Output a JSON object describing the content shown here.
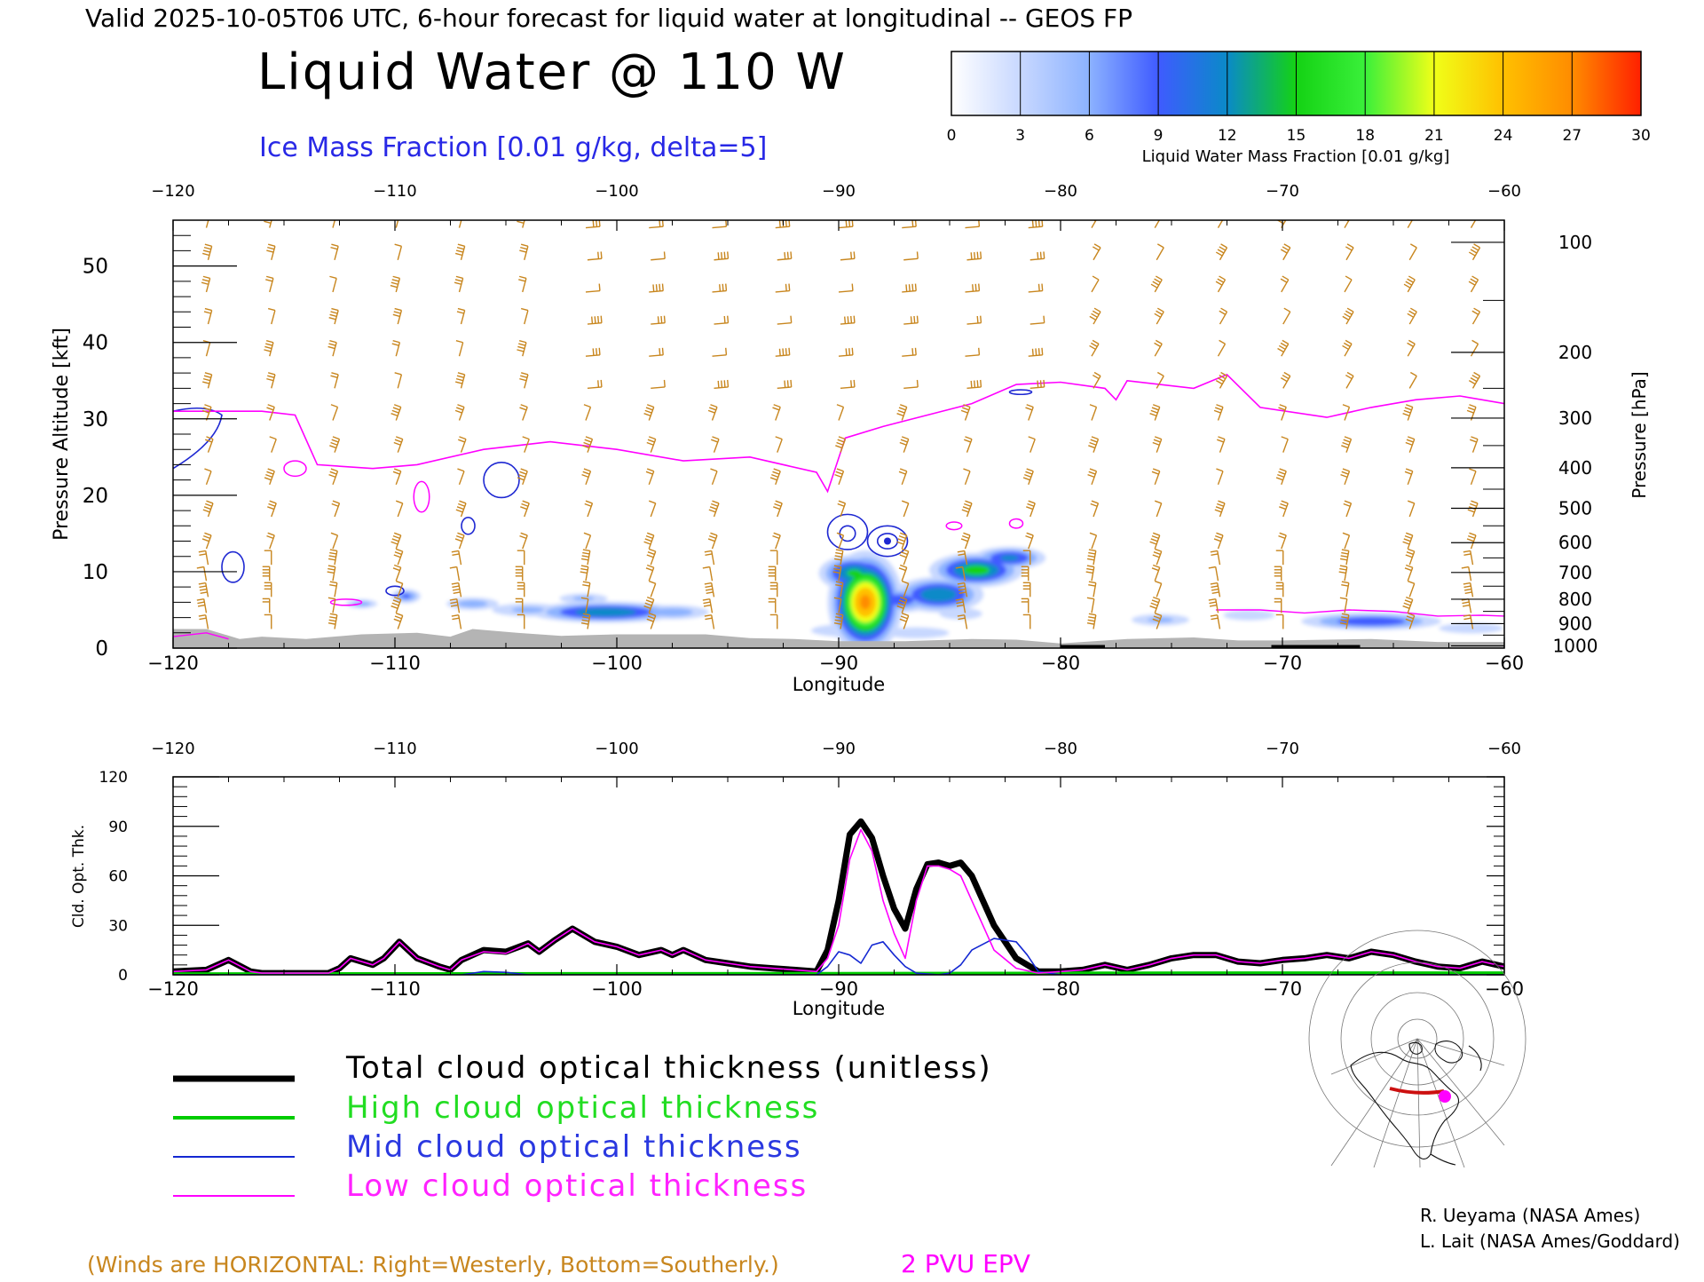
{
  "header": {
    "valid_line": "Valid 2025-10-05T06 UTC, 6-hour forecast for liquid water at longitudinal -- GEOS FP",
    "main_title": "Liquid Water @ 110 W",
    "ice_label": "Ice Mass Fraction [0.01 g/kg, delta=5]"
  },
  "colorbar": {
    "ticks": [
      "0",
      "3",
      "6",
      "9",
      "12",
      "15",
      "18",
      "21",
      "24",
      "27",
      "30"
    ],
    "label": "Liquid Water Mass Fraction [0.01 g/kg]",
    "colors": [
      "#ffffff",
      "#c8d8ff",
      "#8cb2ff",
      "#3f5bff",
      "#0a8ac8",
      "#14d214",
      "#3af03a",
      "#f0ff18",
      "#ffc000",
      "#ff8c00",
      "#ff2000"
    ]
  },
  "colors": {
    "wind": "#c8861e",
    "epv": "#ff00ff",
    "ice": "#1e28d2",
    "terrain": "#b4b4b4",
    "total": "#000000",
    "high": "#00cc00",
    "mid": "#1428d2",
    "low": "#ff00ff"
  },
  "chart_data": [
    {
      "type": "heatmap",
      "xlabel": "Longitude",
      "ylabel": "Pressure Altitude [kft]",
      "y2label": "Pressure [hPa]",
      "xlim": [
        -120,
        -60
      ],
      "ylim": [
        0,
        56
      ],
      "xticks": [
        -120,
        -110,
        -100,
        -90,
        -80,
        -70,
        -60
      ],
      "xticklabels": [
        "−120",
        "−110",
        "−100",
        "−90",
        "−80",
        "−70",
        "−60"
      ],
      "yticks": [
        0,
        10,
        20,
        30,
        40,
        50
      ],
      "yticklabels": [
        "0",
        "10",
        "20",
        "30",
        "40",
        "50"
      ],
      "pressure_ticks": [
        {
          "label": "100",
          "kft": 53.1
        },
        {
          "label": "200",
          "kft": 38.7
        },
        {
          "label": "300",
          "kft": 30.1
        },
        {
          "label": "400",
          "kft": 23.6
        },
        {
          "label": "500",
          "kft": 18.3
        },
        {
          "label": "600",
          "kft": 13.8
        },
        {
          "label": "700",
          "kft": 9.9
        },
        {
          "label": "800",
          "kft": 6.4
        },
        {
          "label": "900",
          "kft": 3.2
        },
        {
          "label": "1000",
          "kft": 0.3
        }
      ],
      "epv_2pvu": {
        "lon": [
          -120,
          -116,
          -114.5,
          -113.5,
          -111,
          -109,
          -106,
          -103,
          -100,
          -97,
          -94,
          -91,
          -90.5,
          -89.7,
          -88,
          -86,
          -84,
          -82,
          -80,
          -78,
          -77.5,
          -77,
          -74,
          -72.5,
          -71,
          -68,
          -66,
          -64,
          -62,
          -60
        ],
        "kft": [
          31,
          31,
          30.5,
          24,
          23.5,
          24,
          26,
          27,
          26,
          24.5,
          25,
          23,
          20.5,
          27.5,
          29,
          30.5,
          32,
          34.5,
          34.8,
          34,
          32.5,
          35,
          34,
          35.8,
          31.5,
          30.2,
          31.5,
          32.5,
          33,
          32
        ]
      },
      "lwc_blobs": [
        {
          "lon": -88.8,
          "kft": 6.0,
          "sx": 0.9,
          "sy": 3.6,
          "peak": 30
        },
        {
          "lon": -89.3,
          "kft": 9.8,
          "sx": 1.0,
          "sy": 1.5,
          "peak": 18
        },
        {
          "lon": -83.8,
          "kft": 10.2,
          "sx": 1.3,
          "sy": 1.4,
          "peak": 19
        },
        {
          "lon": -85.5,
          "kft": 7.0,
          "sx": 1.3,
          "sy": 1.5,
          "peak": 17
        },
        {
          "lon": -87.3,
          "kft": 6.3,
          "sx": 1.2,
          "sy": 1.2,
          "peak": 13
        },
        {
          "lon": -82.3,
          "kft": 11.8,
          "sx": 1.1,
          "sy": 1.0,
          "peak": 15
        },
        {
          "lon": -89.5,
          "kft": 2.3,
          "sx": 1.8,
          "sy": 0.9,
          "peak": 8
        },
        {
          "lon": -86.5,
          "kft": 2.0,
          "sx": 1.8,
          "sy": 0.9,
          "peak": 7
        },
        {
          "lon": -100.5,
          "kft": 4.7,
          "sx": 2.2,
          "sy": 0.9,
          "peak": 17
        },
        {
          "lon": -97.5,
          "kft": 4.7,
          "sx": 1.4,
          "sy": 0.8,
          "peak": 10
        },
        {
          "lon": -104,
          "kft": 5.0,
          "sx": 1.5,
          "sy": 0.8,
          "peak": 9
        },
        {
          "lon": -106.5,
          "kft": 5.8,
          "sx": 1.0,
          "sy": 0.7,
          "peak": 10
        },
        {
          "lon": -101.5,
          "kft": 6.5,
          "sx": 1.0,
          "sy": 0.6,
          "peak": 9
        },
        {
          "lon": -109.5,
          "kft": 6.8,
          "sx": 0.5,
          "sy": 0.7,
          "peak": 12
        },
        {
          "lon": -111.5,
          "kft": 5.8,
          "sx": 0.6,
          "sy": 0.5,
          "peak": 10
        },
        {
          "lon": -75.5,
          "kft": 3.7,
          "sx": 1.2,
          "sy": 0.7,
          "peak": 9
        },
        {
          "lon": -71.5,
          "kft": 4.3,
          "sx": 1.2,
          "sy": 0.7,
          "peak": 8
        },
        {
          "lon": -66,
          "kft": 3.5,
          "sx": 2.2,
          "sy": 0.8,
          "peak": 14
        },
        {
          "lon": -61.5,
          "kft": 2.6,
          "sx": 1.5,
          "sy": 0.7,
          "peak": 8
        },
        {
          "lon": -82.5,
          "kft": 2.5,
          "sx": 1.2,
          "sy": 0.8,
          "peak": 5
        },
        {
          "lon": -77.8,
          "kft": 23.8,
          "sx": 0.5,
          "sy": 1.5,
          "peak": 3
        },
        {
          "lon": -84.5,
          "kft": 4.5,
          "sx": 1.0,
          "sy": 0.8,
          "peak": 8
        }
      ],
      "ice_contours": [
        {
          "lon": -89.6,
          "kft": 15.2,
          "rx": 0.9,
          "ry": 2.3
        },
        {
          "lon": -89.6,
          "kft": 15.0,
          "rx": 0.35,
          "ry": 1.0
        },
        {
          "lon": -87.8,
          "kft": 14.0,
          "rx": 0.9,
          "ry": 2.0
        },
        {
          "lon": -87.8,
          "kft": 14.0,
          "rx": 0.45,
          "ry": 1.0
        },
        {
          "lon": -105.2,
          "kft": 22.0,
          "rx": 0.8,
          "ry": 2.3
        },
        {
          "lon": -117.3,
          "kft": 10.6,
          "rx": 0.5,
          "ry": 2.0
        },
        {
          "lon": -106.7,
          "kft": 16.0,
          "rx": 0.3,
          "ry": 1.1
        },
        {
          "lon": -110,
          "kft": 7.5,
          "rx": 0.4,
          "ry": 0.6
        },
        {
          "lon": -81.8,
          "kft": 33.5,
          "rx": 0.5,
          "ry": 0.3
        }
      ],
      "epv_blobs": [
        {
          "lon": -114.5,
          "kft": 23.5,
          "rx": 0.5,
          "ry": 1.0
        },
        {
          "lon": -108.8,
          "kft": 19.8,
          "rx": 0.35,
          "ry": 2.0
        },
        {
          "lon": -84.8,
          "kft": 16.0,
          "rx": 0.35,
          "ry": 0.5
        },
        {
          "lon": -82,
          "kft": 16.3,
          "rx": 0.3,
          "ry": 0.6
        },
        {
          "lon": -112.2,
          "kft": 6.0,
          "rx": 0.7,
          "ry": 0.4
        }
      ],
      "low_epv": {
        "lon": [
          -73,
          -71,
          -69,
          -67,
          -65,
          -63,
          -61,
          -60
        ],
        "kft": [
          5,
          5,
          4.6,
          5,
          4.8,
          4.2,
          4.3,
          4.2
        ]
      },
      "terrain": {
        "lon": [
          -120,
          -118.5,
          -117,
          -116,
          -114,
          -111.5,
          -109,
          -107.5,
          -106.5,
          -104.5,
          -102.5,
          -100,
          -96,
          -94,
          -92,
          -90,
          -87,
          -84,
          -82,
          -80,
          -77,
          -74,
          -72,
          -70,
          -66,
          -63,
          -60
        ],
        "kft": [
          2.5,
          2.5,
          1.2,
          1.5,
          1.2,
          1.8,
          2.0,
          1.5,
          2.5,
          2.0,
          1.6,
          1.8,
          1.8,
          1.3,
          1.2,
          0.9,
          0.9,
          1.2,
          1.1,
          0.6,
          1.2,
          1.4,
          1.0,
          1.0,
          1.2,
          0.8,
          0.8
        ]
      }
    },
    {
      "type": "line",
      "xlabel": "Longitude",
      "ylabel": "Cld. Opt. Thk.",
      "xlim": [
        -120,
        -60
      ],
      "ylim": [
        0,
        120
      ],
      "xticks": [
        -120,
        -110,
        -100,
        -90,
        -80,
        -70,
        -60
      ],
      "xticklabels": [
        "−120",
        "−110",
        "−100",
        "−90",
        "−80",
        "−70",
        "−60"
      ],
      "yticks": [
        0,
        30,
        60,
        90,
        120
      ],
      "yticklabels": [
        "0",
        "30",
        "60",
        "90",
        "120"
      ],
      "series": [
        {
          "name": "Total cloud optical thickness (unitless)",
          "key": "total",
          "x": [
            -120,
            -118.5,
            -117.5,
            -116.5,
            -116,
            -113,
            -112.5,
            -112,
            -111,
            -110.5,
            -109.8,
            -109,
            -108,
            -107.5,
            -107,
            -106,
            -105,
            -104,
            -103.5,
            -102.8,
            -102,
            -101,
            -100,
            -99,
            -98,
            -97.5,
            -97,
            -96,
            -95,
            -94,
            -93,
            -92,
            -91,
            -90.5,
            -90,
            -89.5,
            -89,
            -88.5,
            -88,
            -87.5,
            -87,
            -86.5,
            -86,
            -85.5,
            -85,
            -84.5,
            -84,
            -83,
            -82,
            -81,
            -80,
            -79,
            -78,
            -77,
            -76,
            -75,
            -74,
            -73,
            -72,
            -71,
            -70,
            -69,
            -68,
            -67,
            -66,
            -65,
            -64,
            -63,
            -62,
            -61,
            -60
          ],
          "y": [
            2,
            3,
            9,
            2,
            1,
            1,
            4,
            10,
            6,
            10,
            20,
            10,
            5,
            3,
            9,
            15,
            14,
            19,
            14,
            21,
            28,
            20,
            17,
            12,
            15,
            12,
            15,
            9,
            7,
            5,
            4,
            3,
            2,
            15,
            45,
            85,
            93,
            83,
            60,
            40,
            28,
            52,
            67,
            68,
            66,
            68,
            60,
            30,
            10,
            2,
            2,
            3,
            6,
            3,
            6,
            10,
            12,
            12,
            8,
            7,
            9,
            10,
            12,
            10,
            14,
            12,
            8,
            5,
            4,
            8,
            5
          ]
        },
        {
          "name": "High cloud optical thickness",
          "key": "high",
          "x": [
            -120,
            -100,
            -90,
            -82,
            -80,
            -70,
            -60
          ],
          "y": [
            0.5,
            0.6,
            0.7,
            0.8,
            0.9,
            1.0,
            1.0
          ]
        },
        {
          "name": "Mid cloud optical thickness",
          "key": "mid",
          "x": [
            -120,
            -107,
            -106,
            -105,
            -104,
            -91,
            -90.5,
            -90,
            -89.5,
            -89,
            -88.5,
            -88,
            -87.5,
            -87,
            -86.5,
            -85.5,
            -85,
            -84.5,
            -84,
            -83,
            -82,
            -81.5,
            -81,
            -80,
            -60
          ],
          "y": [
            0,
            0,
            2,
            1.5,
            0,
            0,
            5,
            14,
            12,
            7,
            18,
            20,
            12,
            5,
            1,
            0,
            1,
            6,
            15,
            22,
            20,
            12,
            2,
            0,
            0
          ]
        },
        {
          "name": "Low cloud optical thickness",
          "key": "low",
          "x": [
            -120,
            -118.5,
            -117.5,
            -116.5,
            -116,
            -113,
            -112.5,
            -112,
            -111,
            -110.5,
            -109.8,
            -109,
            -108,
            -107.5,
            -107,
            -106,
            -105,
            -104,
            -103.5,
            -102.8,
            -102,
            -101,
            -100,
            -99,
            -98,
            -97.5,
            -97,
            -96,
            -95,
            -94,
            -93,
            -92,
            -91,
            -90.5,
            -90,
            -89.5,
            -89,
            -88.5,
            -88,
            -87.5,
            -87,
            -86.5,
            -86,
            -85.5,
            -85,
            -84.5,
            -84,
            -83,
            -82,
            -81,
            -80,
            -79,
            -78,
            -77,
            -76,
            -75,
            -74,
            -73,
            -72,
            -71,
            -70,
            -69,
            -68,
            -67,
            -66,
            -65,
            -64,
            -63,
            -62,
            -61,
            -60
          ],
          "y": [
            2,
            3,
            9,
            2,
            1,
            1,
            4,
            10,
            6,
            10,
            20,
            10,
            5,
            3,
            9,
            14,
            13,
            19,
            14,
            21,
            28,
            20,
            17,
            12,
            15,
            12,
            15,
            9,
            7,
            5,
            4,
            3,
            2,
            10,
            30,
            70,
            88,
            75,
            45,
            25,
            10,
            45,
            66,
            66,
            64,
            60,
            45,
            15,
            4,
            1,
            2,
            3,
            6,
            3,
            6,
            10,
            12,
            12,
            8,
            7,
            9,
            10,
            12,
            10,
            14,
            12,
            8,
            5,
            4,
            8,
            5
          ]
        }
      ]
    }
  ],
  "legend": {
    "total": "Total cloud optical thickness (unitless)",
    "high": "High cloud optical thickness",
    "mid": "Mid cloud optical thickness",
    "low": "Low cloud optical thickness"
  },
  "footer": {
    "winds_note": "(Winds are HORIZONTAL: Right=Westerly, Bottom=Southerly.)",
    "epv_note": "2 PVU EPV",
    "credit1": "R. Ueyama (NASA Ames)",
    "credit2": "L. Lait (NASA Ames/Goddard)"
  },
  "map_icon": "locator-globe-map"
}
